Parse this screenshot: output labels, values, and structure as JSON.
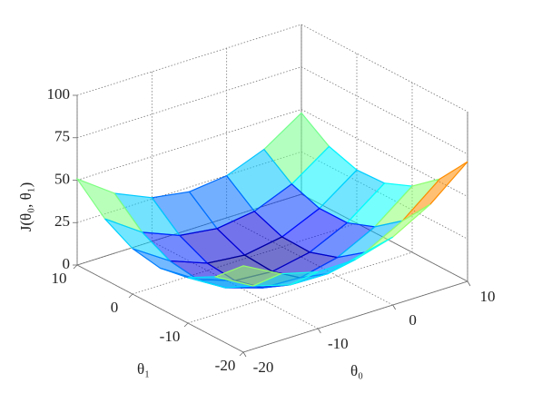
{
  "chart_data": {
    "type": "surface",
    "xlabel": "θ₀",
    "ylabel": "θ₁",
    "zlabel": "J(θ₀, θ₁)",
    "x": [
      -20,
      -15,
      -10,
      -5,
      0,
      5,
      10
    ],
    "y": [
      -20,
      -15,
      -10,
      -5,
      0,
      5,
      10
    ],
    "z": [
      [
        50.9,
        39.2,
        33.4,
        33.7,
        40.0,
        52.3,
        70.5
      ],
      [
        35.9,
        23.5,
        17.2,
        16.8,
        22.5,
        34.1,
        51.8
      ],
      [
        26.8,
        13.9,
        6.9,
        5.9,
        10.9,
        22.0,
        39.0
      ],
      [
        23.8,
        10.2,
        2.6,
        1.0,
        5.4,
        15.8,
        32.2
      ],
      [
        26.8,
        12.6,
        4.3,
        2.1,
        5.9,
        15.7,
        31.4
      ],
      [
        35.8,
        20.9,
        12.1,
        9.2,
        12.4,
        21.5,
        36.7
      ],
      [
        50.7,
        35.3,
        25.8,
        22.3,
        24.8,
        33.4,
        47.9
      ]
    ],
    "xlim": [
      -20,
      10
    ],
    "ylim": [
      -20,
      10
    ],
    "zlim": [
      0,
      100
    ],
    "xticks": [
      -20,
      -10,
      0,
      10
    ],
    "yticks": [
      -20,
      -10,
      0,
      10
    ],
    "zticks": [
      0,
      25,
      50,
      75,
      100
    ],
    "colormap": "jet",
    "grid": true
  }
}
